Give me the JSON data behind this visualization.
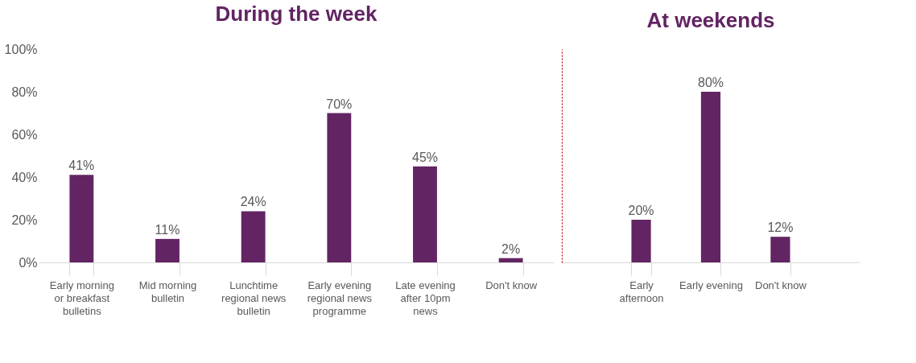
{
  "chart_data": [
    {
      "type": "bar",
      "title": "During the week",
      "categories": [
        "Early morning or breakfast bulletins",
        "Mid morning bulletin",
        "Lunchtime regional news bulletin",
        "Early evening regional news programme",
        "Late evening after 10pm news",
        "Don't know"
      ],
      "values": [
        41,
        11,
        24,
        70,
        45,
        2
      ],
      "value_labels": [
        "41%",
        "11%",
        "24%",
        "70%",
        "45%",
        "2%"
      ],
      "color": "#622463",
      "ylim": [
        0,
        100
      ],
      "yticks": [
        {
          "value": 0,
          "label": "0%"
        },
        {
          "value": 20,
          "label": "20%"
        },
        {
          "value": 40,
          "label": "40%"
        },
        {
          "value": 60,
          "label": "60%"
        },
        {
          "value": 80,
          "label": "80%"
        },
        {
          "value": 100,
          "label": "100%"
        }
      ],
      "grid": false
    },
    {
      "type": "bar",
      "title": "At weekends",
      "categories": [
        "Early afternoon",
        "Early evening",
        "Don't know"
      ],
      "values": [
        20,
        80,
        12
      ],
      "value_labels": [
        "20%",
        "80%",
        "12%"
      ],
      "color": "#622463",
      "ylim": [
        0,
        100
      ],
      "tick_labels": "x",
      "grid": false
    }
  ]
}
